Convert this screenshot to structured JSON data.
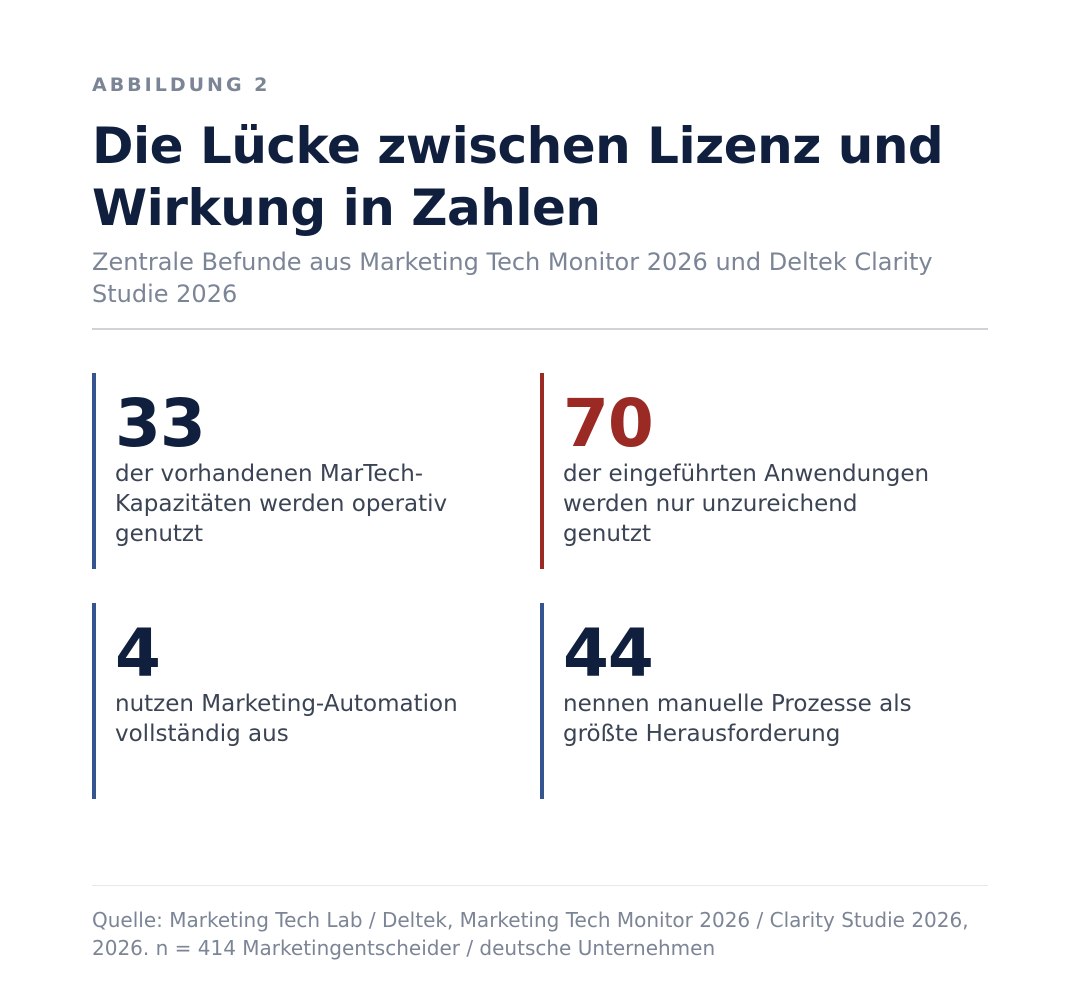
{
  "figure": {
    "eyebrow": "ABBILDUNG 2",
    "title": "Die Lücke zwischen Lizenz und Wirkung in Zahlen",
    "subtitle": "Zentrale Befunde aus Marketing Tech Monitor 2026 und Deltek Clarity Studie 2026"
  },
  "stats": [
    {
      "value": "33",
      "label": "der vorhandenen MarTech-Kapazitäten werden operativ genutzt",
      "accent": "#34558f"
    },
    {
      "value": "70",
      "label": "der eingeführten Anwendungen werden nur unzureichend genutzt",
      "accent": "#9b2a24"
    },
    {
      "value": "4",
      "label": "nutzen Marketing-Automation vollständig aus",
      "accent": "#34558f"
    },
    {
      "value": "44",
      "label": "nennen manuelle Prozesse als größte Herausforderung",
      "accent": "#34558f"
    }
  ],
  "footer": {
    "source": "Quelle: Marketing Tech Lab / Deltek, Marketing Tech Monitor 2026 / Clarity Studie 2026, 2026. n = 414 Marketingentscheider / deutsche Unternehmen"
  },
  "colors": {
    "navy": "#0f1f3d",
    "blue_accent": "#34558f",
    "red_accent": "#9b2a24",
    "muted": "#7c8596"
  }
}
